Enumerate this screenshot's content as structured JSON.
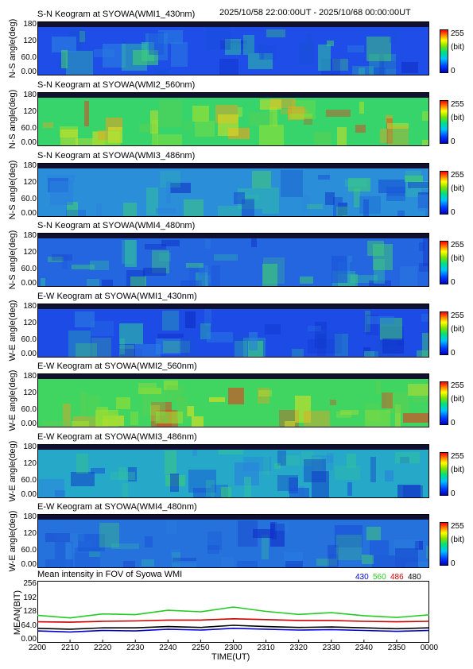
{
  "header": {
    "time_range": "2025/10/58 22:00:00UT - 2025/10/68 00:00:00UT"
  },
  "panels": [
    {
      "title": "S-N Keogram at SYOWA(WMI1_430nm)",
      "ylabel": "N-S angle(deg)",
      "base": "#1e4de8",
      "variation": "cool"
    },
    {
      "title": "S-N Keogram at SYOWA(WMI2_560nm)",
      "ylabel": "N-S angle(deg)",
      "base": "#36d46a",
      "variation": "warm"
    },
    {
      "title": "S-N Keogram at SYOWA(WMI3_486nm)",
      "ylabel": "N-S angle(deg)",
      "base": "#2a8fd8",
      "variation": "cool"
    },
    {
      "title": "S-N Keogram at SYOWA(WMI4_480nm)",
      "ylabel": "N-S angle(deg)",
      "base": "#2466e0",
      "variation": "cool"
    },
    {
      "title": "E-W Keogram at SYOWA(WMI1_430nm)",
      "ylabel": "W-E angle(deg)",
      "base": "#1c4be6",
      "variation": "cool"
    },
    {
      "title": "E-W Keogram at SYOWA(WMI2_560nm)",
      "ylabel": "W-E angle(deg)",
      "base": "#40d460",
      "variation": "warm"
    },
    {
      "title": "E-W Keogram at SYOWA(WMI3_486nm)",
      "ylabel": "W-E angle(deg)",
      "base": "#26a8c8",
      "variation": "cool"
    },
    {
      "title": "E-W Keogram at SYOWA(WMI4_480nm)",
      "ylabel": "W-E angle(deg)",
      "base": "#2672dc",
      "variation": "cool"
    }
  ],
  "y_ticks": [
    "180",
    "120",
    "60.0",
    "0.00"
  ],
  "colorbar": {
    "max": "255",
    "unit": "(bit)",
    "min": "0"
  },
  "chart_data": {
    "type": "line",
    "title": "Mean intensity in FOV of Syowa WMI",
    "ylabel": "MEAN(BIT)",
    "xlabel": "TIME(UT)",
    "x_ticks": [
      "2200",
      "2210",
      "2220",
      "2230",
      "2240",
      "2250",
      "2300",
      "2310",
      "2320",
      "2330",
      "2340",
      "2350",
      "0000"
    ],
    "y_ticks": [
      "256",
      "192",
      "128",
      "64.0",
      "0.00"
    ],
    "ylim": [
      0,
      256
    ],
    "x": [
      0,
      10,
      20,
      30,
      40,
      50,
      60,
      70,
      80,
      90,
      100,
      110,
      120
    ],
    "series": [
      {
        "name": "430",
        "color": "#0000cc",
        "values": [
          40,
          35,
          42,
          40,
          48,
          44,
          52,
          48,
          44,
          46,
          42,
          38,
          42
        ]
      },
      {
        "name": "560",
        "color": "#22cc22",
        "values": [
          112,
          100,
          118,
          115,
          135,
          128,
          150,
          130,
          116,
          124,
          110,
          102,
          114
        ]
      },
      {
        "name": "486",
        "color": "#cc0000",
        "values": [
          82,
          80,
          84,
          86,
          90,
          90,
          96,
          92,
          88,
          88,
          84,
          82,
          84
        ]
      },
      {
        "name": "480",
        "color": "#000000",
        "values": [
          52,
          48,
          54,
          54,
          60,
          56,
          66,
          60,
          56,
          58,
          54,
          50,
          54
        ]
      }
    ]
  }
}
